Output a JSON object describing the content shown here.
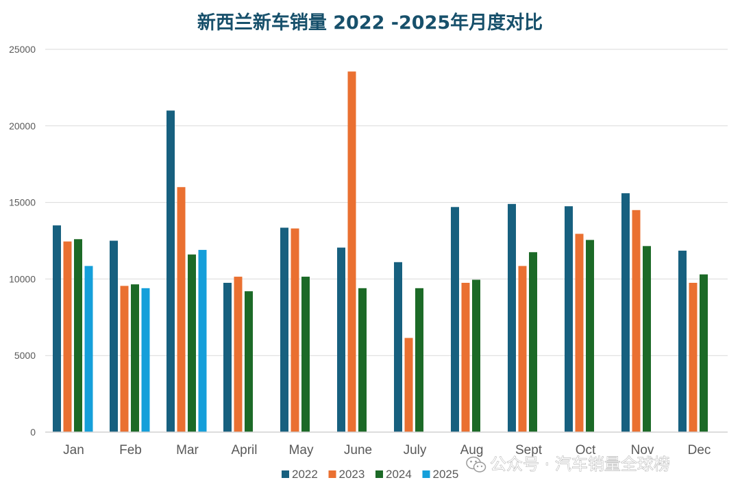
{
  "chart_data": {
    "type": "bar",
    "title": "新西兰新车销量 2022 -2025年月度对比",
    "categories": [
      "Jan",
      "Feb",
      "Mar",
      "April",
      "May",
      "June",
      "July",
      "Aug",
      "Sept",
      "Oct",
      "Nov",
      "Dec"
    ],
    "series": [
      {
        "name": "2022",
        "color": "#17607f",
        "values": [
          13500,
          12500,
          21000,
          9750,
          13350,
          12050,
          11100,
          14700,
          14900,
          14750,
          15600,
          11850
        ]
      },
      {
        "name": "2023",
        "color": "#ea7031",
        "values": [
          12450,
          9550,
          16000,
          10150,
          13300,
          23550,
          6150,
          9750,
          10850,
          12950,
          14500,
          9750
        ]
      },
      {
        "name": "2024",
        "color": "#1c6a27",
        "values": [
          12600,
          9650,
          11600,
          9200,
          10150,
          9400,
          9400,
          9950,
          11750,
          12550,
          12150,
          10300
        ]
      },
      {
        "name": "2025",
        "color": "#159fda",
        "values": [
          10850,
          9400,
          11900,
          null,
          null,
          null,
          null,
          null,
          null,
          null,
          null,
          null
        ]
      }
    ],
    "yticks": [
      "0",
      "5000",
      "10000",
      "15000",
      "20000",
      "25000"
    ],
    "ylim": [
      0,
      25000
    ],
    "xlabel": "",
    "ylabel": "",
    "grid": true,
    "legend_position": "bottom"
  },
  "watermark": {
    "icon": "wechat-icon",
    "text": "公众号 · 汽车销量全球榜"
  }
}
